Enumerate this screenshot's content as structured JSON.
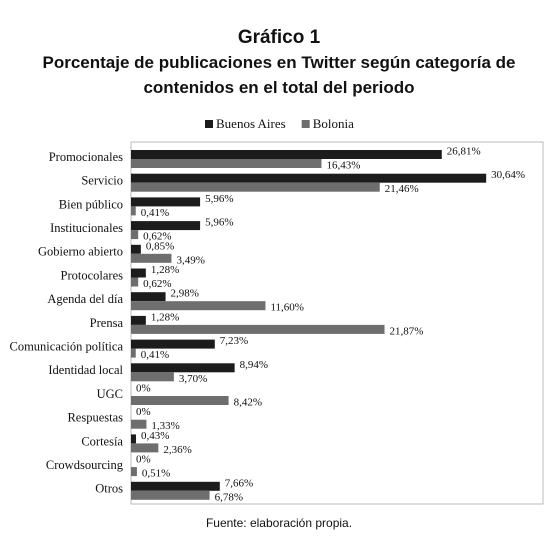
{
  "chart_data": {
    "type": "bar",
    "orientation": "horizontal",
    "title": "Gráfico 1",
    "subtitle": "Porcentaje de publicaciones en Twitter según categoría de contenidos en el total del periodo",
    "source": "Fuente: elaboración propia.",
    "categories": [
      "Promocionales",
      "Servicio",
      "Bien público",
      "Institucionales",
      "Gobierno abierto",
      "Protocolares",
      "Agenda del día",
      "Prensa",
      "Comunicación política",
      "Identidad local",
      "UGC",
      "Respuestas",
      "Cortesía",
      "Crowdsourcing",
      "Otros"
    ],
    "series": [
      {
        "name": "Buenos Aires",
        "color": "#1c1c1c",
        "values": [
          26.81,
          30.64,
          5.96,
          5.96,
          0.85,
          1.28,
          2.98,
          1.28,
          7.23,
          8.94,
          0,
          0,
          0.43,
          0,
          7.66
        ],
        "value_labels": [
          "26,81%",
          "30,64%",
          "5,96%",
          "5,96%",
          "0,85%",
          "1,28%",
          "2,98%",
          "1,28%",
          "7,23%",
          "8,94%",
          "0%",
          "0%",
          "0,43%",
          "0%",
          "7,66%"
        ]
      },
      {
        "name": "Bolonia",
        "color": "#6e6e6e",
        "values": [
          16.43,
          21.46,
          0.41,
          0.62,
          3.49,
          0.62,
          11.6,
          21.87,
          0.41,
          3.7,
          8.42,
          1.33,
          2.36,
          0.51,
          6.78
        ],
        "value_labels": [
          "16,43%",
          "21,46%",
          "0,41%",
          "0,62%",
          "3,49%",
          "0,62%",
          "11,60%",
          "21,87%",
          "0,41%",
          "3,70%",
          "8,42%",
          "1,33%",
          "2,36%",
          "0,51%",
          "6,78%"
        ]
      }
    ],
    "legend": "top"
  }
}
